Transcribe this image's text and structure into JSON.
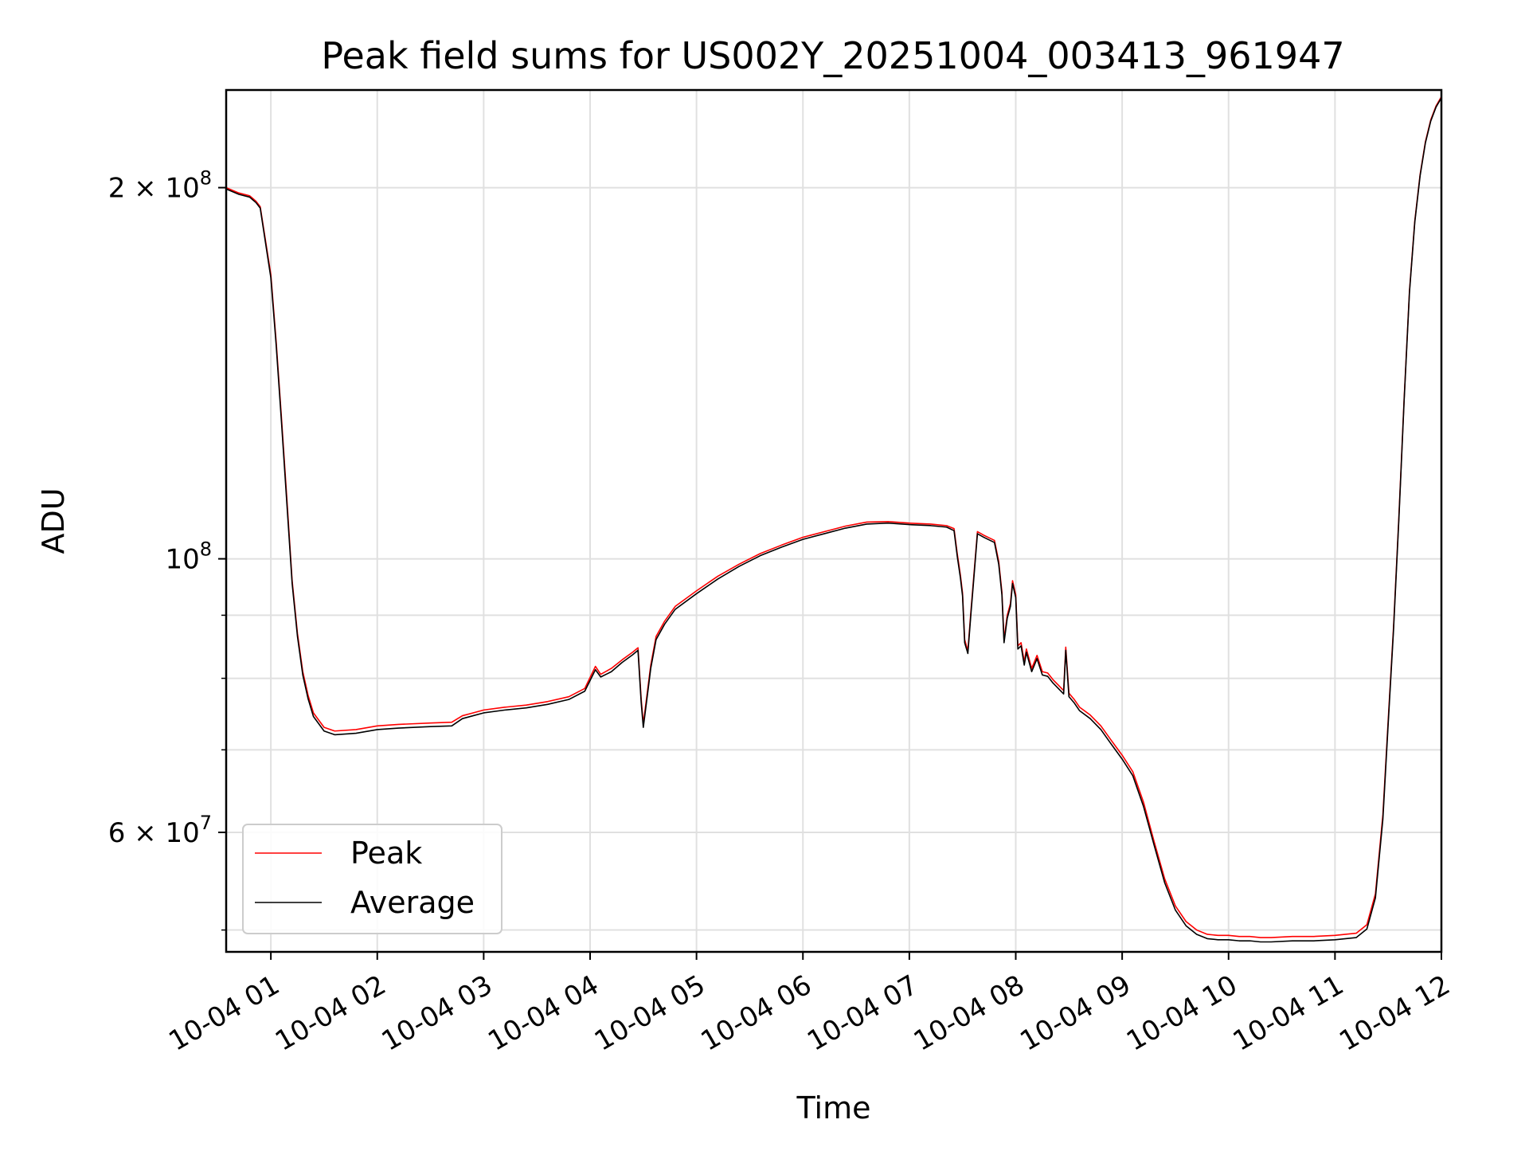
{
  "chart_data": {
    "type": "line",
    "title": "Peak field sums for US002Y_20251004_003413_961947",
    "xlabel": "Time",
    "ylabel": "ADU",
    "yscale": "log",
    "ylim": [
      48000000,
      240000000
    ],
    "xlim_hours": [
      0.58,
      12.0
    ],
    "x_ticks": [
      {
        "hour": 1,
        "label": "10-04 01"
      },
      {
        "hour": 2,
        "label": "10-04 02"
      },
      {
        "hour": 3,
        "label": "10-04 03"
      },
      {
        "hour": 4,
        "label": "10-04 04"
      },
      {
        "hour": 5,
        "label": "10-04 05"
      },
      {
        "hour": 6,
        "label": "10-04 06"
      },
      {
        "hour": 7,
        "label": "10-04 07"
      },
      {
        "hour": 8,
        "label": "10-04 08"
      },
      {
        "hour": 9,
        "label": "10-04 09"
      },
      {
        "hour": 10,
        "label": "10-04 10"
      },
      {
        "hour": 11,
        "label": "10-04 11"
      },
      {
        "hour": 12,
        "label": "10-04 12"
      }
    ],
    "y_major_ticks": [
      {
        "value": 200000000,
        "base": "2 × 10",
        "exp": "8"
      },
      {
        "value": 100000000,
        "base": "10",
        "exp": "8"
      },
      {
        "value": 60000000,
        "base": "6 × 10",
        "exp": "7"
      }
    ],
    "y_minor_ticks": [
      50000000,
      70000000,
      80000000,
      90000000
    ],
    "legend": {
      "position": "lower-left"
    },
    "grid": true,
    "series": [
      {
        "name": "Peak",
        "color": "#ff0000",
        "x_hours": [
          0.58,
          0.7,
          0.8,
          0.83,
          0.86,
          0.9,
          1.0,
          1.05,
          1.1,
          1.15,
          1.2,
          1.25,
          1.3,
          1.35,
          1.4,
          1.5,
          1.6,
          1.8,
          2.0,
          2.2,
          2.5,
          2.7,
          2.8,
          2.9,
          3.0,
          3.2,
          3.4,
          3.6,
          3.8,
          3.95,
          4.05,
          4.1,
          4.2,
          4.3,
          4.4,
          4.45,
          4.48,
          4.5,
          4.53,
          4.57,
          4.62,
          4.7,
          4.8,
          5.0,
          5.2,
          5.4,
          5.6,
          5.8,
          6.0,
          6.2,
          6.4,
          6.6,
          6.8,
          7.0,
          7.2,
          7.35,
          7.42,
          7.45,
          7.48,
          7.5,
          7.52,
          7.55,
          7.58,
          7.6,
          7.64,
          7.7,
          7.75,
          7.8,
          7.84,
          7.87,
          7.89,
          7.92,
          7.95,
          7.97,
          8.0,
          8.02,
          8.05,
          8.08,
          8.1,
          8.15,
          8.2,
          8.25,
          8.3,
          8.35,
          8.4,
          8.45,
          8.47,
          8.5,
          8.55,
          8.6,
          8.7,
          8.8,
          8.9,
          9.0,
          9.1,
          9.2,
          9.3,
          9.4,
          9.5,
          9.6,
          9.7,
          9.8,
          9.9,
          10.0,
          10.1,
          10.2,
          10.3,
          10.4,
          10.6,
          10.8,
          11.0,
          11.1,
          11.2,
          11.3,
          11.38,
          11.45,
          11.5,
          11.55,
          11.6,
          11.65,
          11.7,
          11.75,
          11.8,
          11.85,
          11.9,
          11.95,
          12.0
        ],
        "values": [
          200000000,
          198000000,
          197000000,
          196000000,
          195000000,
          193000000,
          170000000,
          150000000,
          130000000,
          112000000,
          96000000,
          87000000,
          81000000,
          77500000,
          75000000,
          73000000,
          72500000,
          72700000,
          73200000,
          73400000,
          73600000,
          73700000,
          74600000,
          75000000,
          75400000,
          75800000,
          76100000,
          76600000,
          77300000,
          78500000,
          81800000,
          80600000,
          81500000,
          82800000,
          84000000,
          84700000,
          77000000,
          73500000,
          77000000,
          82000000,
          86500000,
          89000000,
          91500000,
          94200000,
          96800000,
          99000000,
          101000000,
          102600000,
          104100000,
          105200000,
          106300000,
          107100000,
          107200000,
          106900000,
          106700000,
          106400000,
          105800000,
          101000000,
          97000000,
          93800000,
          86000000,
          84200000,
          91000000,
          95500000,
          105200000,
          104500000,
          104000000,
          103500000,
          99500000,
          94000000,
          86000000,
          90000000,
          92000000,
          96000000,
          93500000,
          85000000,
          85500000,
          82500000,
          84500000,
          81500000,
          83500000,
          81000000,
          80800000,
          79800000,
          79000000,
          78200000,
          84800000,
          77800000,
          76900000,
          75800000,
          74700000,
          73200000,
          71200000,
          69300000,
          67200000,
          63500000,
          59000000,
          55000000,
          52300000,
          50800000,
          50000000,
          49600000,
          49500000,
          49500000,
          49400000,
          49400000,
          49300000,
          49300000,
          49400000,
          49400000,
          49500000,
          49600000,
          49700000,
          50500000,
          53500000,
          62000000,
          74000000,
          88000000,
          108000000,
          135000000,
          165000000,
          188000000,
          205000000,
          218000000,
          227000000,
          233000000,
          237000000
        ]
      },
      {
        "name": "Average",
        "color": "#000000",
        "x_hours": [
          0.58,
          0.7,
          0.8,
          0.83,
          0.86,
          0.9,
          1.0,
          1.05,
          1.1,
          1.15,
          1.2,
          1.25,
          1.3,
          1.35,
          1.4,
          1.5,
          1.6,
          1.8,
          2.0,
          2.2,
          2.5,
          2.7,
          2.8,
          2.9,
          3.0,
          3.2,
          3.4,
          3.6,
          3.8,
          3.95,
          4.05,
          4.1,
          4.2,
          4.3,
          4.4,
          4.45,
          4.48,
          4.5,
          4.53,
          4.57,
          4.62,
          4.7,
          4.8,
          5.0,
          5.2,
          5.4,
          5.6,
          5.8,
          6.0,
          6.2,
          6.4,
          6.6,
          6.8,
          7.0,
          7.2,
          7.35,
          7.42,
          7.45,
          7.48,
          7.5,
          7.52,
          7.55,
          7.58,
          7.6,
          7.64,
          7.7,
          7.75,
          7.8,
          7.84,
          7.87,
          7.89,
          7.92,
          7.95,
          7.97,
          8.0,
          8.02,
          8.05,
          8.08,
          8.1,
          8.15,
          8.2,
          8.25,
          8.3,
          8.35,
          8.4,
          8.45,
          8.47,
          8.5,
          8.55,
          8.6,
          8.7,
          8.8,
          8.9,
          9.0,
          9.1,
          9.2,
          9.3,
          9.4,
          9.5,
          9.6,
          9.7,
          9.8,
          9.9,
          10.0,
          10.1,
          10.2,
          10.3,
          10.4,
          10.6,
          10.8,
          11.0,
          11.1,
          11.2,
          11.3,
          11.38,
          11.45,
          11.5,
          11.55,
          11.6,
          11.65,
          11.7,
          11.75,
          11.8,
          11.85,
          11.9,
          11.95,
          12.0
        ],
        "values": [
          199500000,
          197500000,
          196500000,
          195500000,
          194500000,
          192500000,
          169000000,
          149000000,
          129000000,
          111000000,
          95500000,
          86500000,
          80500000,
          77000000,
          74500000,
          72500000,
          72000000,
          72200000,
          72700000,
          72900000,
          73100000,
          73200000,
          74200000,
          74600000,
          75000000,
          75400000,
          75700000,
          76200000,
          76900000,
          78100000,
          81300000,
          80200000,
          81000000,
          82400000,
          83600000,
          84300000,
          76500000,
          73000000,
          76500000,
          81500000,
          86000000,
          88500000,
          91000000,
          93700000,
          96300000,
          98600000,
          100600000,
          102200000,
          103700000,
          104800000,
          105900000,
          106700000,
          106900000,
          106600000,
          106400000,
          106100000,
          105400000,
          100500000,
          96500000,
          93300000,
          85500000,
          83800000,
          90500000,
          95000000,
          104800000,
          104100000,
          103600000,
          103100000,
          99000000,
          93500000,
          85500000,
          89500000,
          91500000,
          95500000,
          93000000,
          84500000,
          85000000,
          82000000,
          84000000,
          81000000,
          83000000,
          80500000,
          80300000,
          79300000,
          78500000,
          77700000,
          84300000,
          77300000,
          76400000,
          75300000,
          74200000,
          72700000,
          70700000,
          68800000,
          66700000,
          63000000,
          58600000,
          54600000,
          51900000,
          50400000,
          49600000,
          49200000,
          49100000,
          49100000,
          49000000,
          49000000,
          48900000,
          48900000,
          49000000,
          49000000,
          49100000,
          49200000,
          49300000,
          50100000,
          53100000,
          61500000,
          73500000,
          87500000,
          107500000,
          134500000,
          164500000,
          187500000,
          204500000,
          217500000,
          226500000,
          232500000,
          236500000
        ]
      }
    ]
  }
}
